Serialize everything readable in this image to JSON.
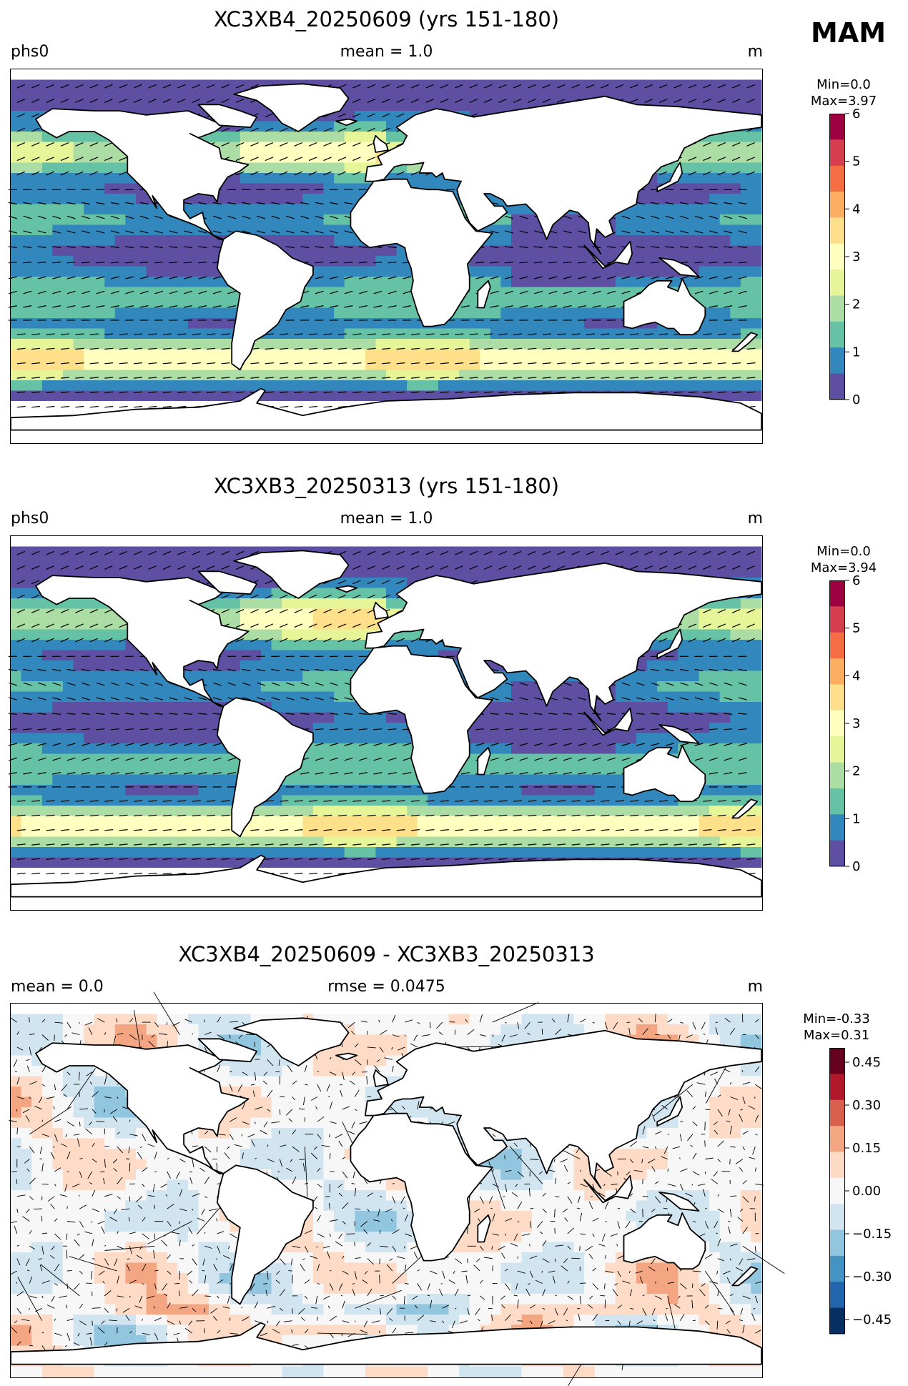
{
  "season": "MAM",
  "chart_data": [
    {
      "type": "heatmap",
      "title": "XC3XB4_20250609 (yrs 151-180)",
      "left_label": "phs0",
      "center_label": "mean = 1.0",
      "right_label": "m",
      "min_text": "Min=0.0",
      "max_text": "Max=3.97",
      "colorbar": {
        "range": [
          0,
          6
        ],
        "ticks": [
          "0",
          "1",
          "2",
          "3",
          "4",
          "5",
          "6"
        ],
        "colors": [
          "#5e4fa2",
          "#3288bd",
          "#66c2a5",
          "#abdda4",
          "#e6f598",
          "#ffffbf",
          "#fee08b",
          "#fdae61",
          "#f46d43",
          "#d53e4f",
          "#9e0142"
        ]
      },
      "overlay": "vectors"
    },
    {
      "type": "heatmap",
      "title": "XC3XB3_20250313 (yrs 151-180)",
      "left_label": "phs0",
      "center_label": "mean = 1.0",
      "right_label": "m",
      "min_text": "Min=0.0",
      "max_text": "Max=3.94",
      "colorbar": {
        "range": [
          0,
          6
        ],
        "ticks": [
          "0",
          "1",
          "2",
          "3",
          "4",
          "5",
          "6"
        ],
        "colors": [
          "#5e4fa2",
          "#3288bd",
          "#66c2a5",
          "#abdda4",
          "#e6f598",
          "#ffffbf",
          "#fee08b",
          "#fdae61",
          "#f46d43",
          "#d53e4f",
          "#9e0142"
        ]
      },
      "overlay": "vectors"
    },
    {
      "type": "heatmap",
      "title": "XC3XB4_20250609 - XC3XB3_20250313",
      "left_label": "mean = 0.0",
      "center_label": "rmse = 0.0475",
      "right_label": "m",
      "min_text": "Min=-0.33",
      "max_text": "Max=0.31",
      "colorbar": {
        "range": [
          -0.5,
          0.5
        ],
        "ticks": [
          "0.45",
          "0.30",
          "0.15",
          "0.00",
          "−0.15",
          "−0.30",
          "−0.45"
        ],
        "colors": [
          "#053061",
          "#2166ac",
          "#4393c3",
          "#92c5de",
          "#d1e5f0",
          "#f7f7f7",
          "#fddbc7",
          "#f4a582",
          "#d6604d",
          "#b2182b",
          "#67001f"
        ]
      },
      "overlay": "vectors"
    }
  ]
}
